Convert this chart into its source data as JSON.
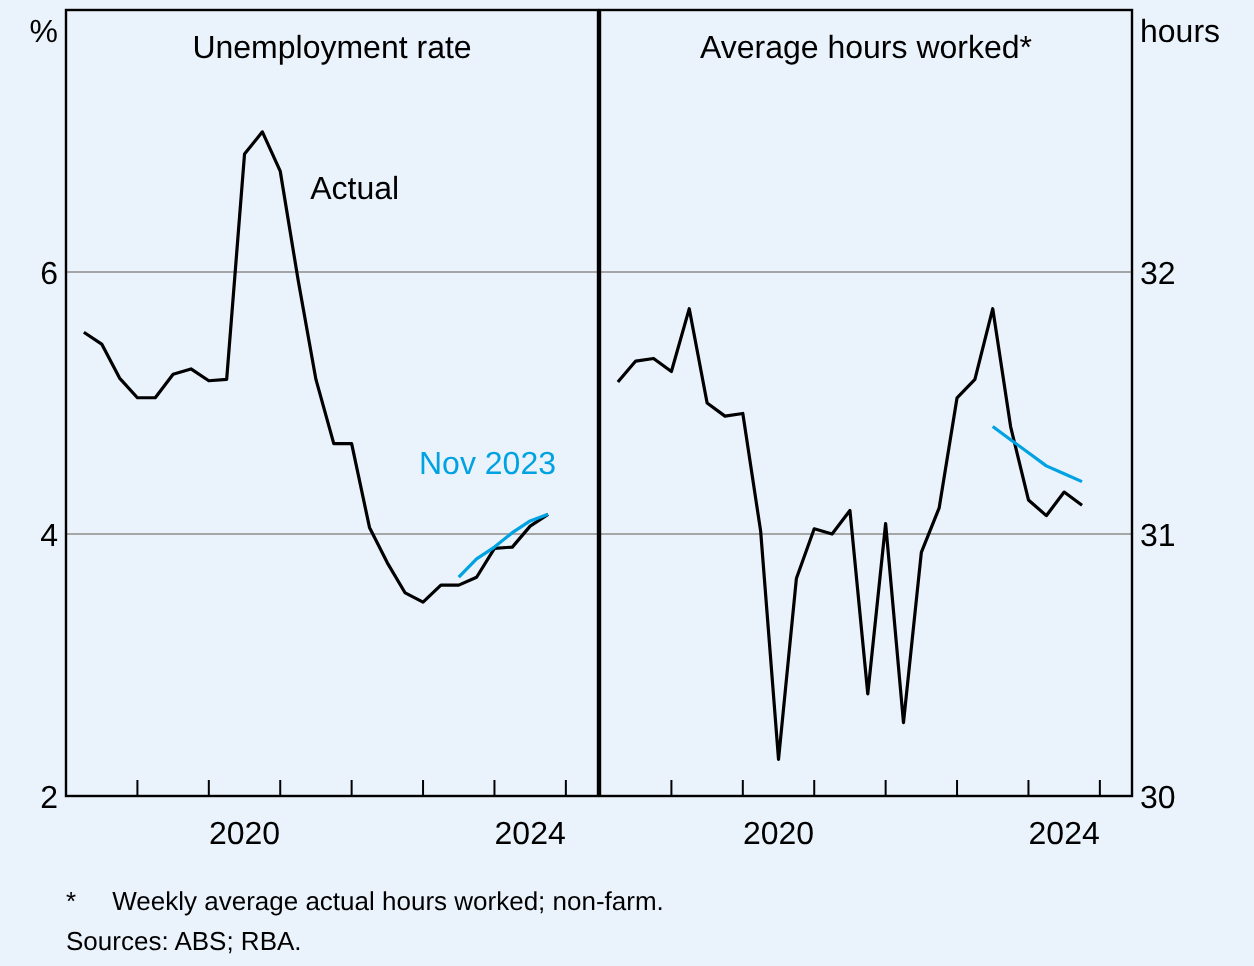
{
  "chart_data": [
    {
      "type": "line",
      "title": "Unemployment rate",
      "ylabel": "%",
      "xlim": [
        2018,
        2025.45
      ],
      "ylim": [
        2,
        8
      ],
      "yticks": [
        2,
        4,
        6
      ],
      "xticks": [
        {
          "value": 2019,
          "label": null
        },
        {
          "value": 2020,
          "label": null
        },
        {
          "value": 2021,
          "label": null
        },
        {
          "value": 2022,
          "label": null
        },
        {
          "value": 2023,
          "label": null
        },
        {
          "value": 2024,
          "label": null
        },
        {
          "value": 2025,
          "label": null
        },
        {
          "value": 2020.5,
          "label": "2020"
        },
        {
          "value": 2024.5,
          "label": "2024"
        }
      ],
      "grid": "y",
      "legend": false,
      "annotations": [
        "*     Weekly average actual hours worked; non-farm.",
        "Sources: ABS; RBA."
      ],
      "series": [
        {
          "name": "Actual",
          "color": "#000000",
          "x": [
            2018.25,
            2018.5,
            2018.75,
            2019,
            2019.25,
            2019.5,
            2019.75,
            2020,
            2020.25,
            2020.5,
            2020.75,
            2021,
            2021.25,
            2021.5,
            2021.75,
            2022,
            2022.25,
            2022.5,
            2022.75,
            2023,
            2023.25,
            2023.5,
            2023.75,
            2024,
            2024.25,
            2024.5,
            2024.75
          ],
          "values": [
            5.54,
            5.45,
            5.19,
            5.04,
            5.04,
            5.22,
            5.26,
            5.17,
            5.18,
            6.9,
            7.07,
            6.77,
            5.94,
            5.18,
            4.69,
            4.69,
            4.05,
            3.78,
            3.55,
            3.48,
            3.61,
            3.61,
            3.67,
            3.89,
            3.9,
            4.06,
            4.15
          ]
        },
        {
          "name": "Nov 2023",
          "color": "#00a2e1",
          "x": [
            2023.5,
            2023.75,
            2024,
            2024.25,
            2024.5,
            2024.75
          ],
          "values": [
            3.67,
            3.81,
            3.9,
            4.01,
            4.1,
            4.15
          ]
        }
      ]
    },
    {
      "type": "line",
      "title": "Average hours worked*",
      "ylabel": "hours",
      "xlim": [
        2018,
        2025.45
      ],
      "ylim": [
        30,
        33
      ],
      "yticks": [
        30,
        31,
        32
      ],
      "xticks": [
        {
          "value": 2019,
          "label": null
        },
        {
          "value": 2020,
          "label": null
        },
        {
          "value": 2021,
          "label": null
        },
        {
          "value": 2022,
          "label": null
        },
        {
          "value": 2023,
          "label": null
        },
        {
          "value": 2024,
          "label": null
        },
        {
          "value": 2025,
          "label": null
        },
        {
          "value": 2020.5,
          "label": "2020"
        },
        {
          "value": 2024.5,
          "label": "2024"
        }
      ],
      "grid": "y",
      "series": [
        {
          "color": "#000000",
          "x": [
            2018.25,
            2018.5,
            2018.75,
            2019,
            2019.25,
            2019.5,
            2019.75,
            2020,
            2020.25,
            2020.5,
            2020.75,
            2021,
            2021.25,
            2021.5,
            2021.75,
            2022,
            2022.25,
            2022.5,
            2022.75,
            2023,
            2023.25,
            2023.5,
            2023.75,
            2024,
            2024.25,
            2024.5,
            2024.75
          ],
          "values": [
            31.58,
            31.66,
            31.67,
            31.62,
            31.86,
            31.5,
            31.45,
            31.46,
            31.01,
            30.14,
            30.83,
            31.02,
            31.0,
            31.09,
            30.39,
            31.04,
            30.28,
            30.93,
            31.1,
            31.52,
            31.59,
            31.86,
            31.41,
            31.13,
            31.07,
            31.16,
            31.11
          ]
        },
        {
          "color": "#00a2e1",
          "x": [
            2023.5,
            2023.75,
            2024,
            2024.25,
            2024.5,
            2024.75
          ],
          "values": [
            31.41,
            31.36,
            31.31,
            31.26,
            31.23,
            31.2
          ]
        }
      ]
    }
  ]
}
